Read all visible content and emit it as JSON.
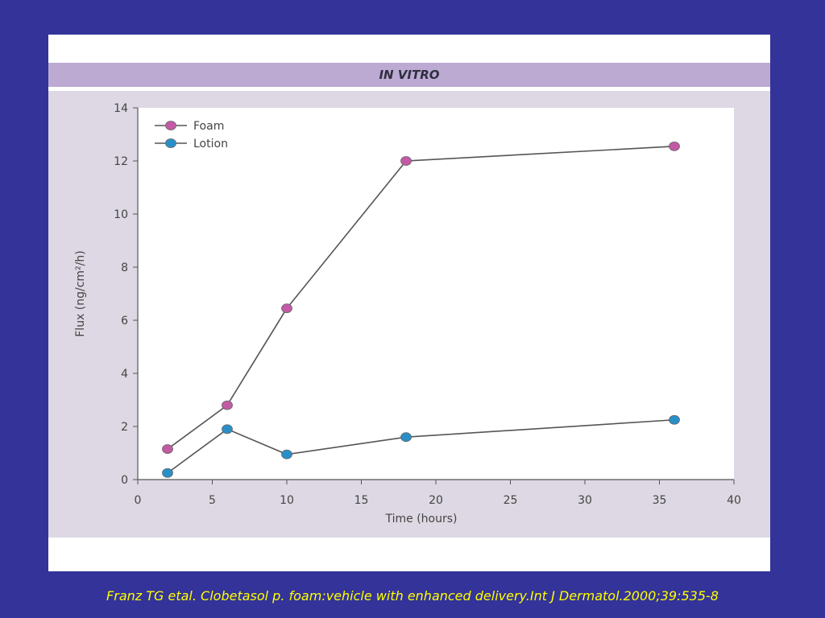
{
  "slide": {
    "title": "IN VITRO",
    "citation": "Franz TG etal. Clobetasol p. foam:vehicle with enhanced delivery.Int  J Dermatol.2000;39:535-8"
  },
  "colors": {
    "background": "#333399",
    "plot_area": "#ffffff",
    "panel": "#ddd8e3",
    "title_band": "#bcaad3",
    "foam": "#c25aa5",
    "lotion": "#2a8fc7",
    "citation": "#ffff00"
  },
  "chart_data": {
    "type": "line",
    "title": "IN VITRO",
    "xlabel": "Time (hours)",
    "ylabel": "Flux (ng/cm²/h)",
    "xlim": [
      0,
      40
    ],
    "ylim": [
      0,
      14
    ],
    "xticks": [
      0,
      5,
      10,
      15,
      20,
      25,
      30,
      35,
      40
    ],
    "yticks": [
      0,
      2,
      4,
      6,
      8,
      10,
      12,
      14
    ],
    "grid": false,
    "legend_position": "top-left",
    "series": [
      {
        "name": "Foam",
        "color": "#c25aa5",
        "x": [
          2,
          6,
          10,
          18,
          36
        ],
        "y": [
          1.15,
          2.8,
          6.45,
          12.0,
          12.55
        ]
      },
      {
        "name": "Lotion",
        "color": "#2a8fc7",
        "x": [
          2,
          6,
          10,
          18,
          36
        ],
        "y": [
          0.25,
          1.9,
          0.95,
          1.6,
          2.25
        ]
      }
    ]
  }
}
